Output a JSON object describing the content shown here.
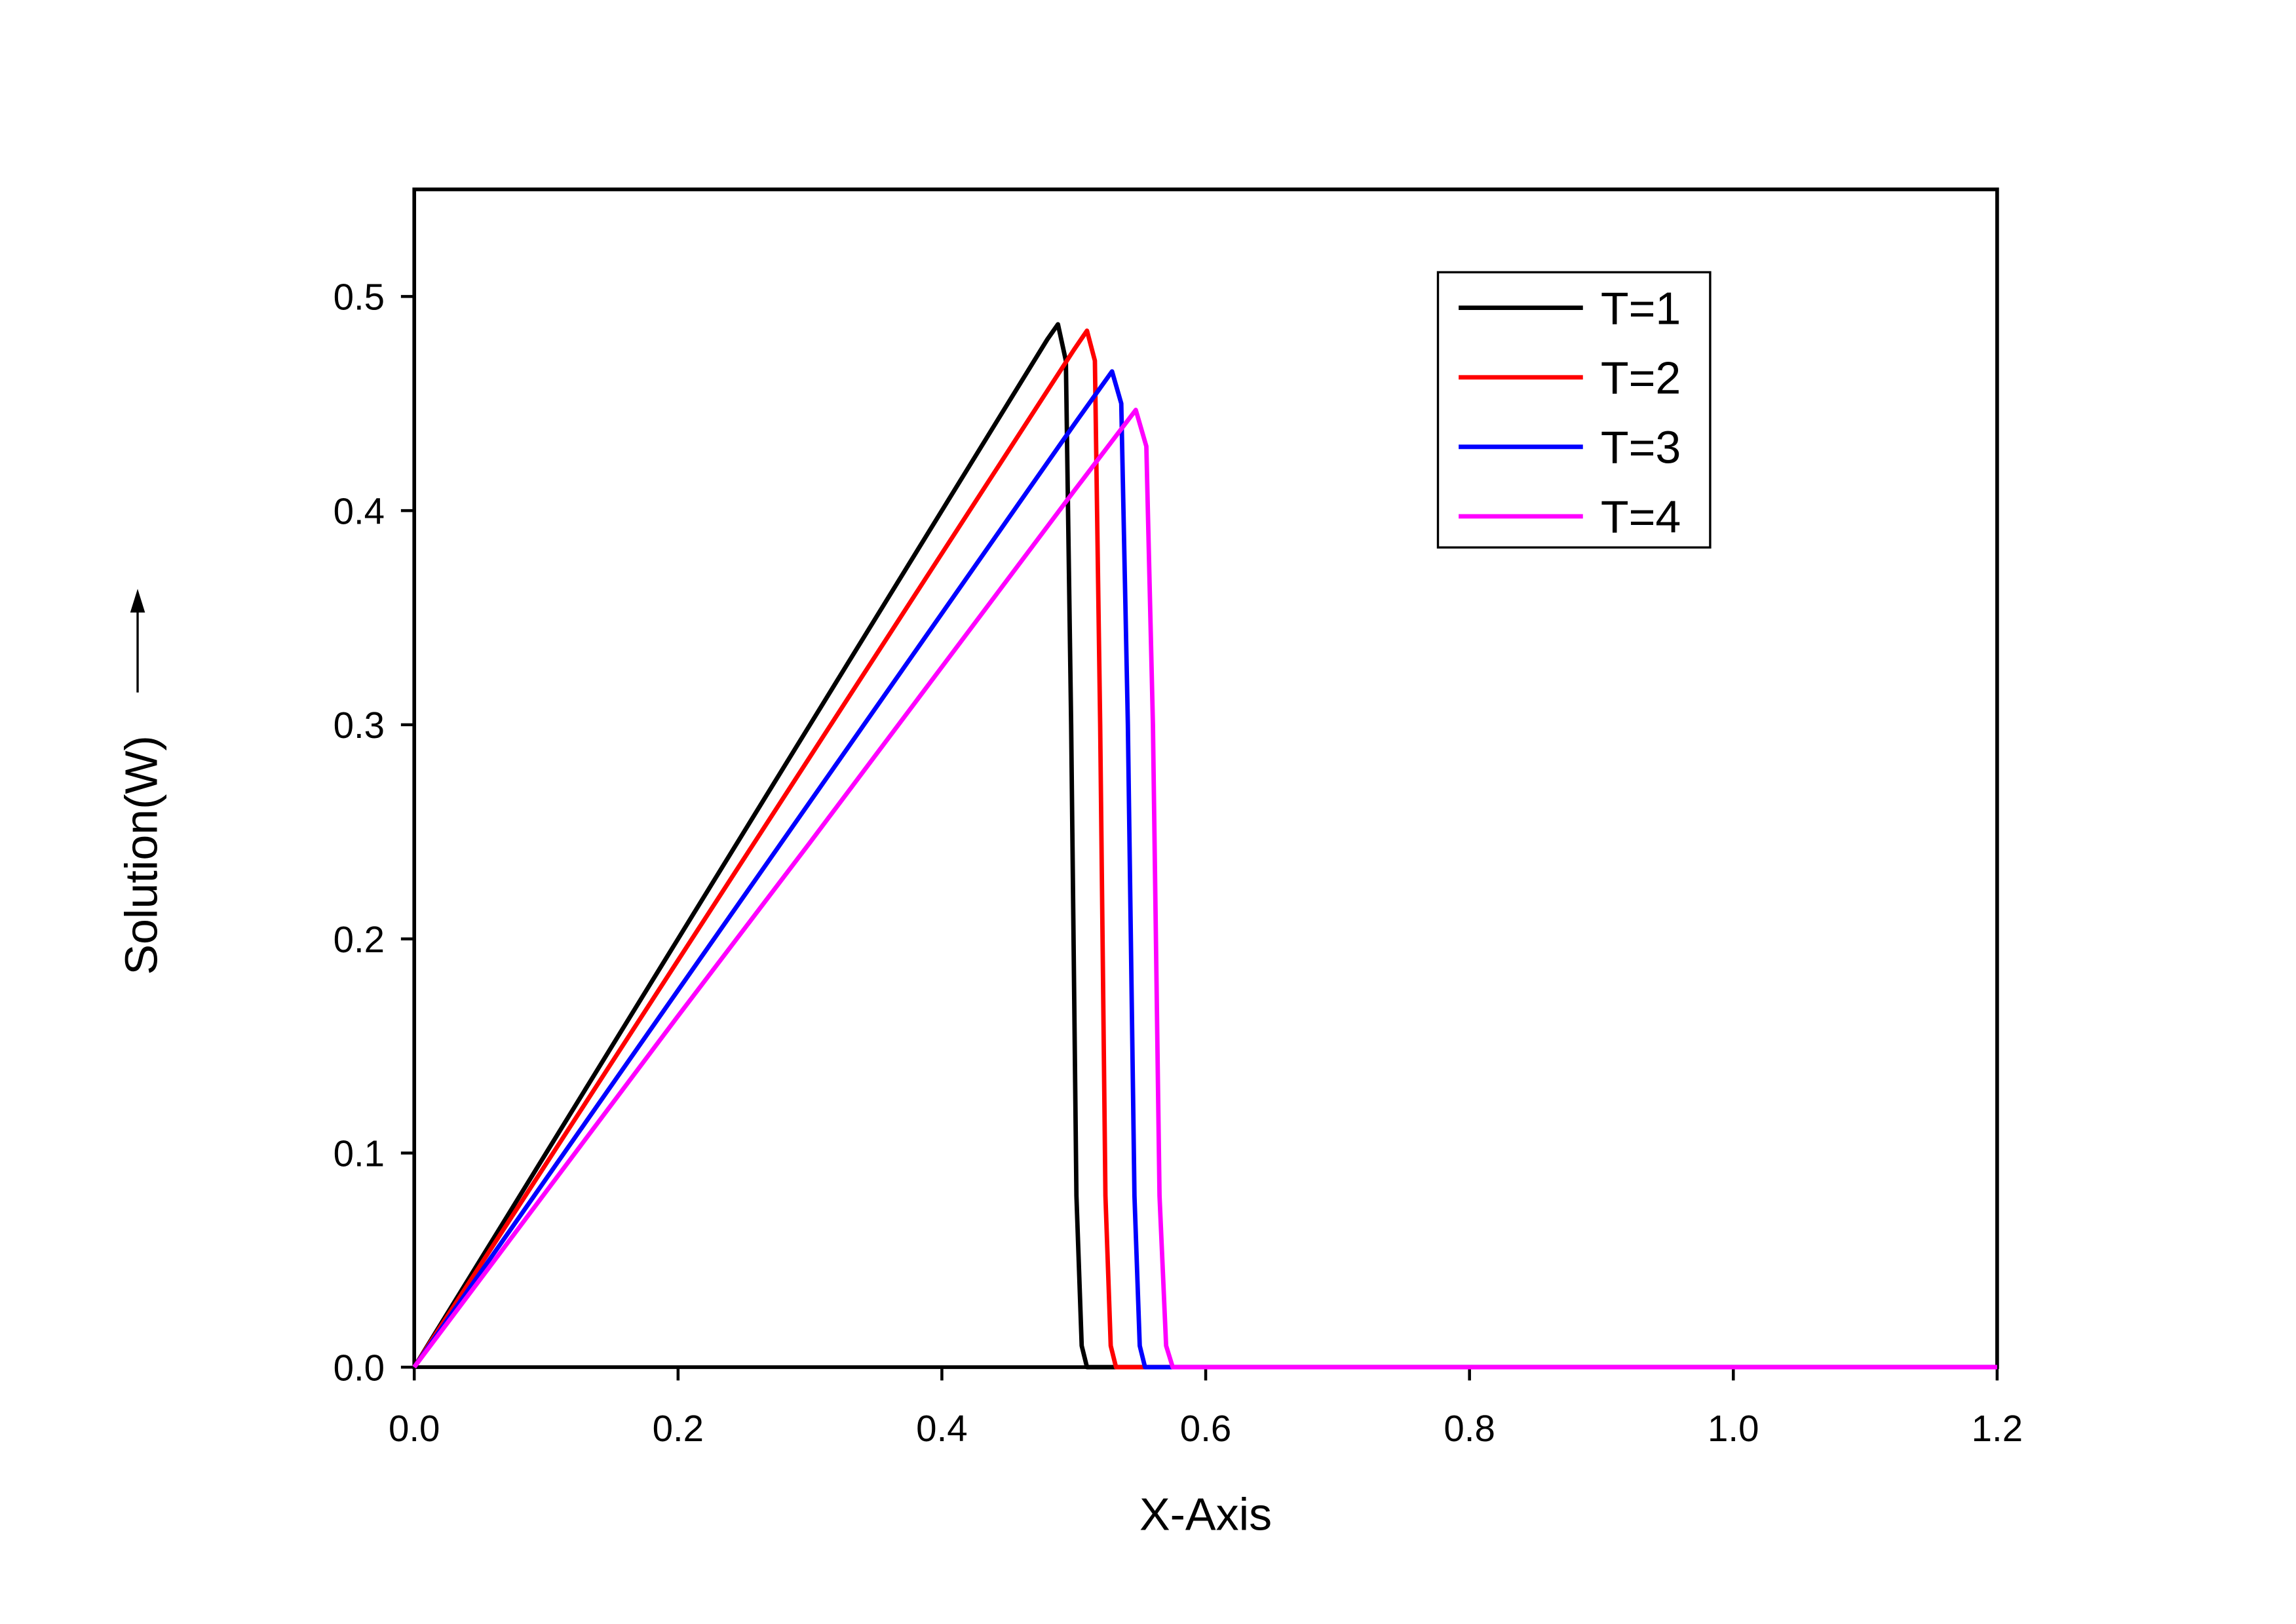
{
  "chart_data": {
    "type": "line",
    "x_label": "X-Axis",
    "y_label": "Solution(W)",
    "xlim": [
      0,
      1.2
    ],
    "ylim": [
      0,
      0.55
    ],
    "xticks": [
      {
        "value": 0,
        "label": "0.0"
      },
      0.2,
      0.4,
      0.6,
      0.8,
      {
        "value": 1,
        "label": "1.0"
      },
      1.2
    ],
    "yticks": [
      {
        "value": 0,
        "label": "0.0"
      },
      0.1,
      0.2,
      0.3,
      0.4,
      0.5
    ],
    "legend": "upper right",
    "series": [
      {
        "name": "T=1",
        "color": "#000000",
        "x": [
          0,
          0.1,
          0.2,
          0.3,
          0.4,
          0.48,
          0.488,
          0.494,
          0.498,
          0.502,
          0.506,
          0.51,
          1.2
        ],
        "values": [
          0,
          0.1,
          0.2,
          0.3,
          0.4,
          0.48,
          0.487,
          0.47,
          0.3,
          0.08,
          0.01,
          0,
          0
        ]
      },
      {
        "name": "T=2",
        "color": "#ff0000",
        "x": [
          0,
          0.1,
          0.2,
          0.3,
          0.4,
          0.5,
          0.51,
          0.516,
          0.52,
          0.524,
          0.528,
          0.532,
          1.2
        ],
        "values": [
          0,
          0.095,
          0.19,
          0.285,
          0.38,
          0.475,
          0.484,
          0.47,
          0.3,
          0.08,
          0.01,
          0,
          0
        ]
      },
      {
        "name": "T=3",
        "color": "#0000ff",
        "x": [
          0,
          0.1,
          0.2,
          0.3,
          0.4,
          0.5,
          0.529,
          0.536,
          0.541,
          0.546,
          0.55,
          0.554,
          1.2
        ],
        "values": [
          0,
          0.088,
          0.176,
          0.264,
          0.352,
          0.44,
          0.465,
          0.45,
          0.3,
          0.08,
          0.01,
          0,
          0
        ]
      },
      {
        "name": "T=4",
        "color": "#ff00ff",
        "x": [
          0,
          0.1,
          0.2,
          0.3,
          0.4,
          0.5,
          0.547,
          0.555,
          0.56,
          0.565,
          0.57,
          0.575,
          1.2
        ],
        "values": [
          0,
          0.082,
          0.164,
          0.245,
          0.327,
          0.409,
          0.447,
          0.43,
          0.3,
          0.08,
          0.01,
          0,
          0
        ]
      }
    ]
  }
}
